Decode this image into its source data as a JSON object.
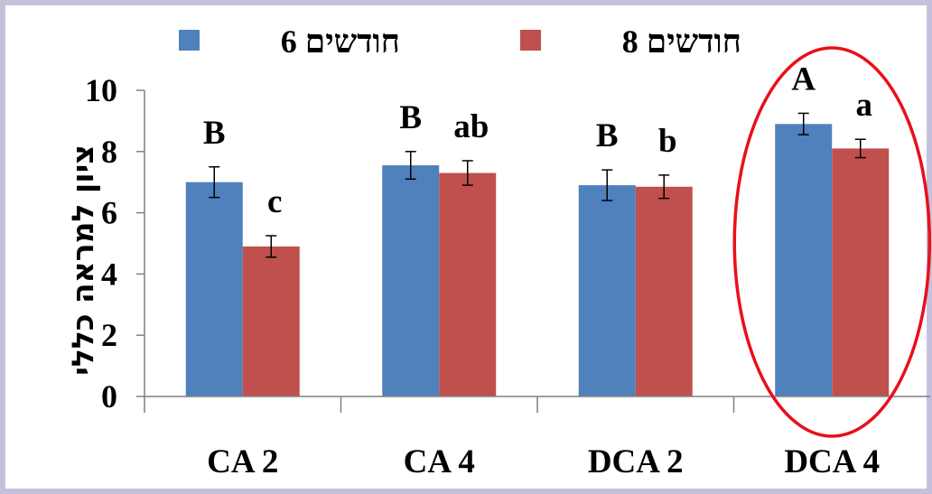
{
  "chart_data": {
    "type": "bar",
    "categories": [
      "CA 2",
      "CA 4",
      "DCA 2",
      "DCA 4"
    ],
    "series": [
      {
        "name": "6 חודשים",
        "color": "#4f81bd",
        "values": [
          7.0,
          7.55,
          6.9,
          8.9
        ],
        "errors": [
          0.5,
          0.45,
          0.5,
          0.35
        ],
        "labels": [
          "B",
          "B",
          "B",
          "A"
        ]
      },
      {
        "name": "8 חודשים",
        "color": "#c0504d",
        "values": [
          4.9,
          7.3,
          6.85,
          8.1
        ],
        "errors": [
          0.35,
          0.4,
          0.38,
          0.3
        ],
        "labels": [
          "c",
          "ab",
          "b",
          "a"
        ]
      }
    ],
    "ylabel": "ציון למראה כללי",
    "xlabel": "",
    "ylim": [
      0,
      10
    ],
    "yticks": [
      "0",
      "2",
      "4",
      "6",
      "8",
      "10"
    ],
    "legend_position": "top",
    "highlight": {
      "category": "DCA 4",
      "color": "#e8101a"
    }
  }
}
